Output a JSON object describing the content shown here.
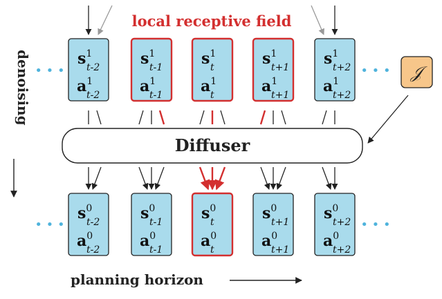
{
  "title": "local receptive field",
  "diffuser_label": "Diffuser",
  "denoising_label": "denoising",
  "planning_label": "planning horizon",
  "objective_label": "𝒥",
  "ellipsis": "• • •",
  "colors": {
    "box_fill": "#a9dbec",
    "highlight": "#d32f2f",
    "objective_fill": "#f7c68a",
    "dots": "#4fb3dc"
  },
  "top_row": [
    {
      "s_sup": "1",
      "sub": "t-2",
      "highlight": false
    },
    {
      "s_sup": "1",
      "sub": "t-1",
      "highlight": true
    },
    {
      "s_sup": "1",
      "sub": "t",
      "highlight": true
    },
    {
      "s_sup": "1",
      "sub": "t+1",
      "highlight": true
    },
    {
      "s_sup": "1",
      "sub": "t+2",
      "highlight": false
    }
  ],
  "bottom_row": [
    {
      "s_sup": "0",
      "sub": "t-2",
      "highlight": false
    },
    {
      "s_sup": "0",
      "sub": "t-1",
      "highlight": false
    },
    {
      "s_sup": "0",
      "sub": "t",
      "highlight": true
    },
    {
      "s_sup": "0",
      "sub": "t+1",
      "highlight": false
    },
    {
      "s_sup": "0",
      "sub": "t+2",
      "highlight": false
    }
  ],
  "state_symbol": "s",
  "action_symbol": "a"
}
